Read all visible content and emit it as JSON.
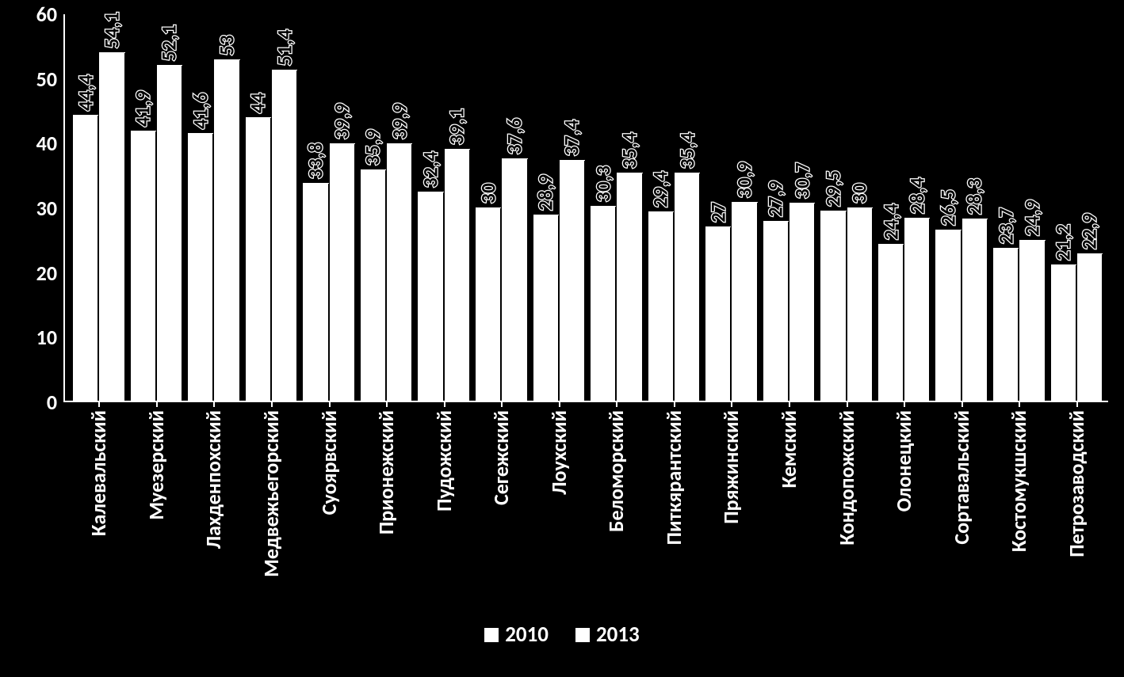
{
  "chart": {
    "type": "bar",
    "background_color": "#000000",
    "axis_color": "#ffffff",
    "tick_label_color": "#ffffff",
    "tick_label_fontsize": 26,
    "tick_label_fontweight": 700,
    "bar_color": "#ffffff",
    "data_label_color": "#000000",
    "data_label_outline": "#ffffff",
    "data_label_fontsize": 25,
    "category_label_color": "#ffffff",
    "category_label_fontsize": 26,
    "category_label_rotation_deg": -90,
    "ylim": [
      0,
      60
    ],
    "ytick_step": 10,
    "yticks": [
      0,
      10,
      20,
      30,
      40,
      50,
      60
    ],
    "series": [
      {
        "name": "2010",
        "color": "#ffffff"
      },
      {
        "name": "2013",
        "color": "#ffffff"
      }
    ],
    "categories": [
      {
        "label": "Калевальский",
        "v2010": 44.4,
        "v2013": 54.1,
        "s2010": "44,4",
        "s2013": "54,1"
      },
      {
        "label": "Муезерский",
        "v2010": 41.9,
        "v2013": 52.1,
        "s2010": "41,9",
        "s2013": "52,1"
      },
      {
        "label": "Лахденпохский",
        "v2010": 41.6,
        "v2013": 53.0,
        "s2010": "41,6",
        "s2013": "53"
      },
      {
        "label": "Медвежьегорский",
        "v2010": 44.0,
        "v2013": 51.4,
        "s2010": "44",
        "s2013": "51,4"
      },
      {
        "label": "Суоярвский",
        "v2010": 33.8,
        "v2013": 39.9,
        "s2010": "33,8",
        "s2013": "39,9"
      },
      {
        "label": "Прионежский",
        "v2010": 35.9,
        "v2013": 39.9,
        "s2010": "35,9",
        "s2013": "39,9"
      },
      {
        "label": "Пудожский",
        "v2010": 32.4,
        "v2013": 39.1,
        "s2010": "32,4",
        "s2013": "39,1"
      },
      {
        "label": "Сегежский",
        "v2010": 30.0,
        "v2013": 37.6,
        "s2010": "30",
        "s2013": "37,6"
      },
      {
        "label": "Лоухский",
        "v2010": 28.9,
        "v2013": 37.4,
        "s2010": "28,9",
        "s2013": "37,4"
      },
      {
        "label": "Беломорский",
        "v2010": 30.3,
        "v2013": 35.4,
        "s2010": "30,3",
        "s2013": "35,4"
      },
      {
        "label": "Питкярантский",
        "v2010": 29.4,
        "v2013": 35.4,
        "s2010": "29,4",
        "s2013": "35,4"
      },
      {
        "label": "Пряжинский",
        "v2010": 27.0,
        "v2013": 30.9,
        "s2010": "27",
        "s2013": "30,9"
      },
      {
        "label": "Кемский",
        "v2010": 27.9,
        "v2013": 30.7,
        "s2010": "27,9",
        "s2013": "30,7"
      },
      {
        "label": "Кондопожский",
        "v2010": 29.5,
        "v2013": 30.0,
        "s2010": "29,5",
        "s2013": "30"
      },
      {
        "label": "Олонецкий",
        "v2010": 24.4,
        "v2013": 28.4,
        "s2010": "24,4",
        "s2013": "28,4"
      },
      {
        "label": "Сортавальский",
        "v2010": 26.5,
        "v2013": 28.3,
        "s2010": "26,5",
        "s2013": "28,3"
      },
      {
        "label": "Костомукшский",
        "v2010": 23.7,
        "v2013": 24.9,
        "s2010": "23,7",
        "s2013": "24,9"
      },
      {
        "label": "Петрозаводский",
        "v2010": 21.2,
        "v2013": 22.9,
        "s2010": "21,2",
        "s2013": "22,9"
      }
    ],
    "legend": {
      "position": "bottom",
      "fontsize": 27,
      "fontweight": 700,
      "color": "#ffffff",
      "swatch_color": "#ffffff"
    }
  }
}
